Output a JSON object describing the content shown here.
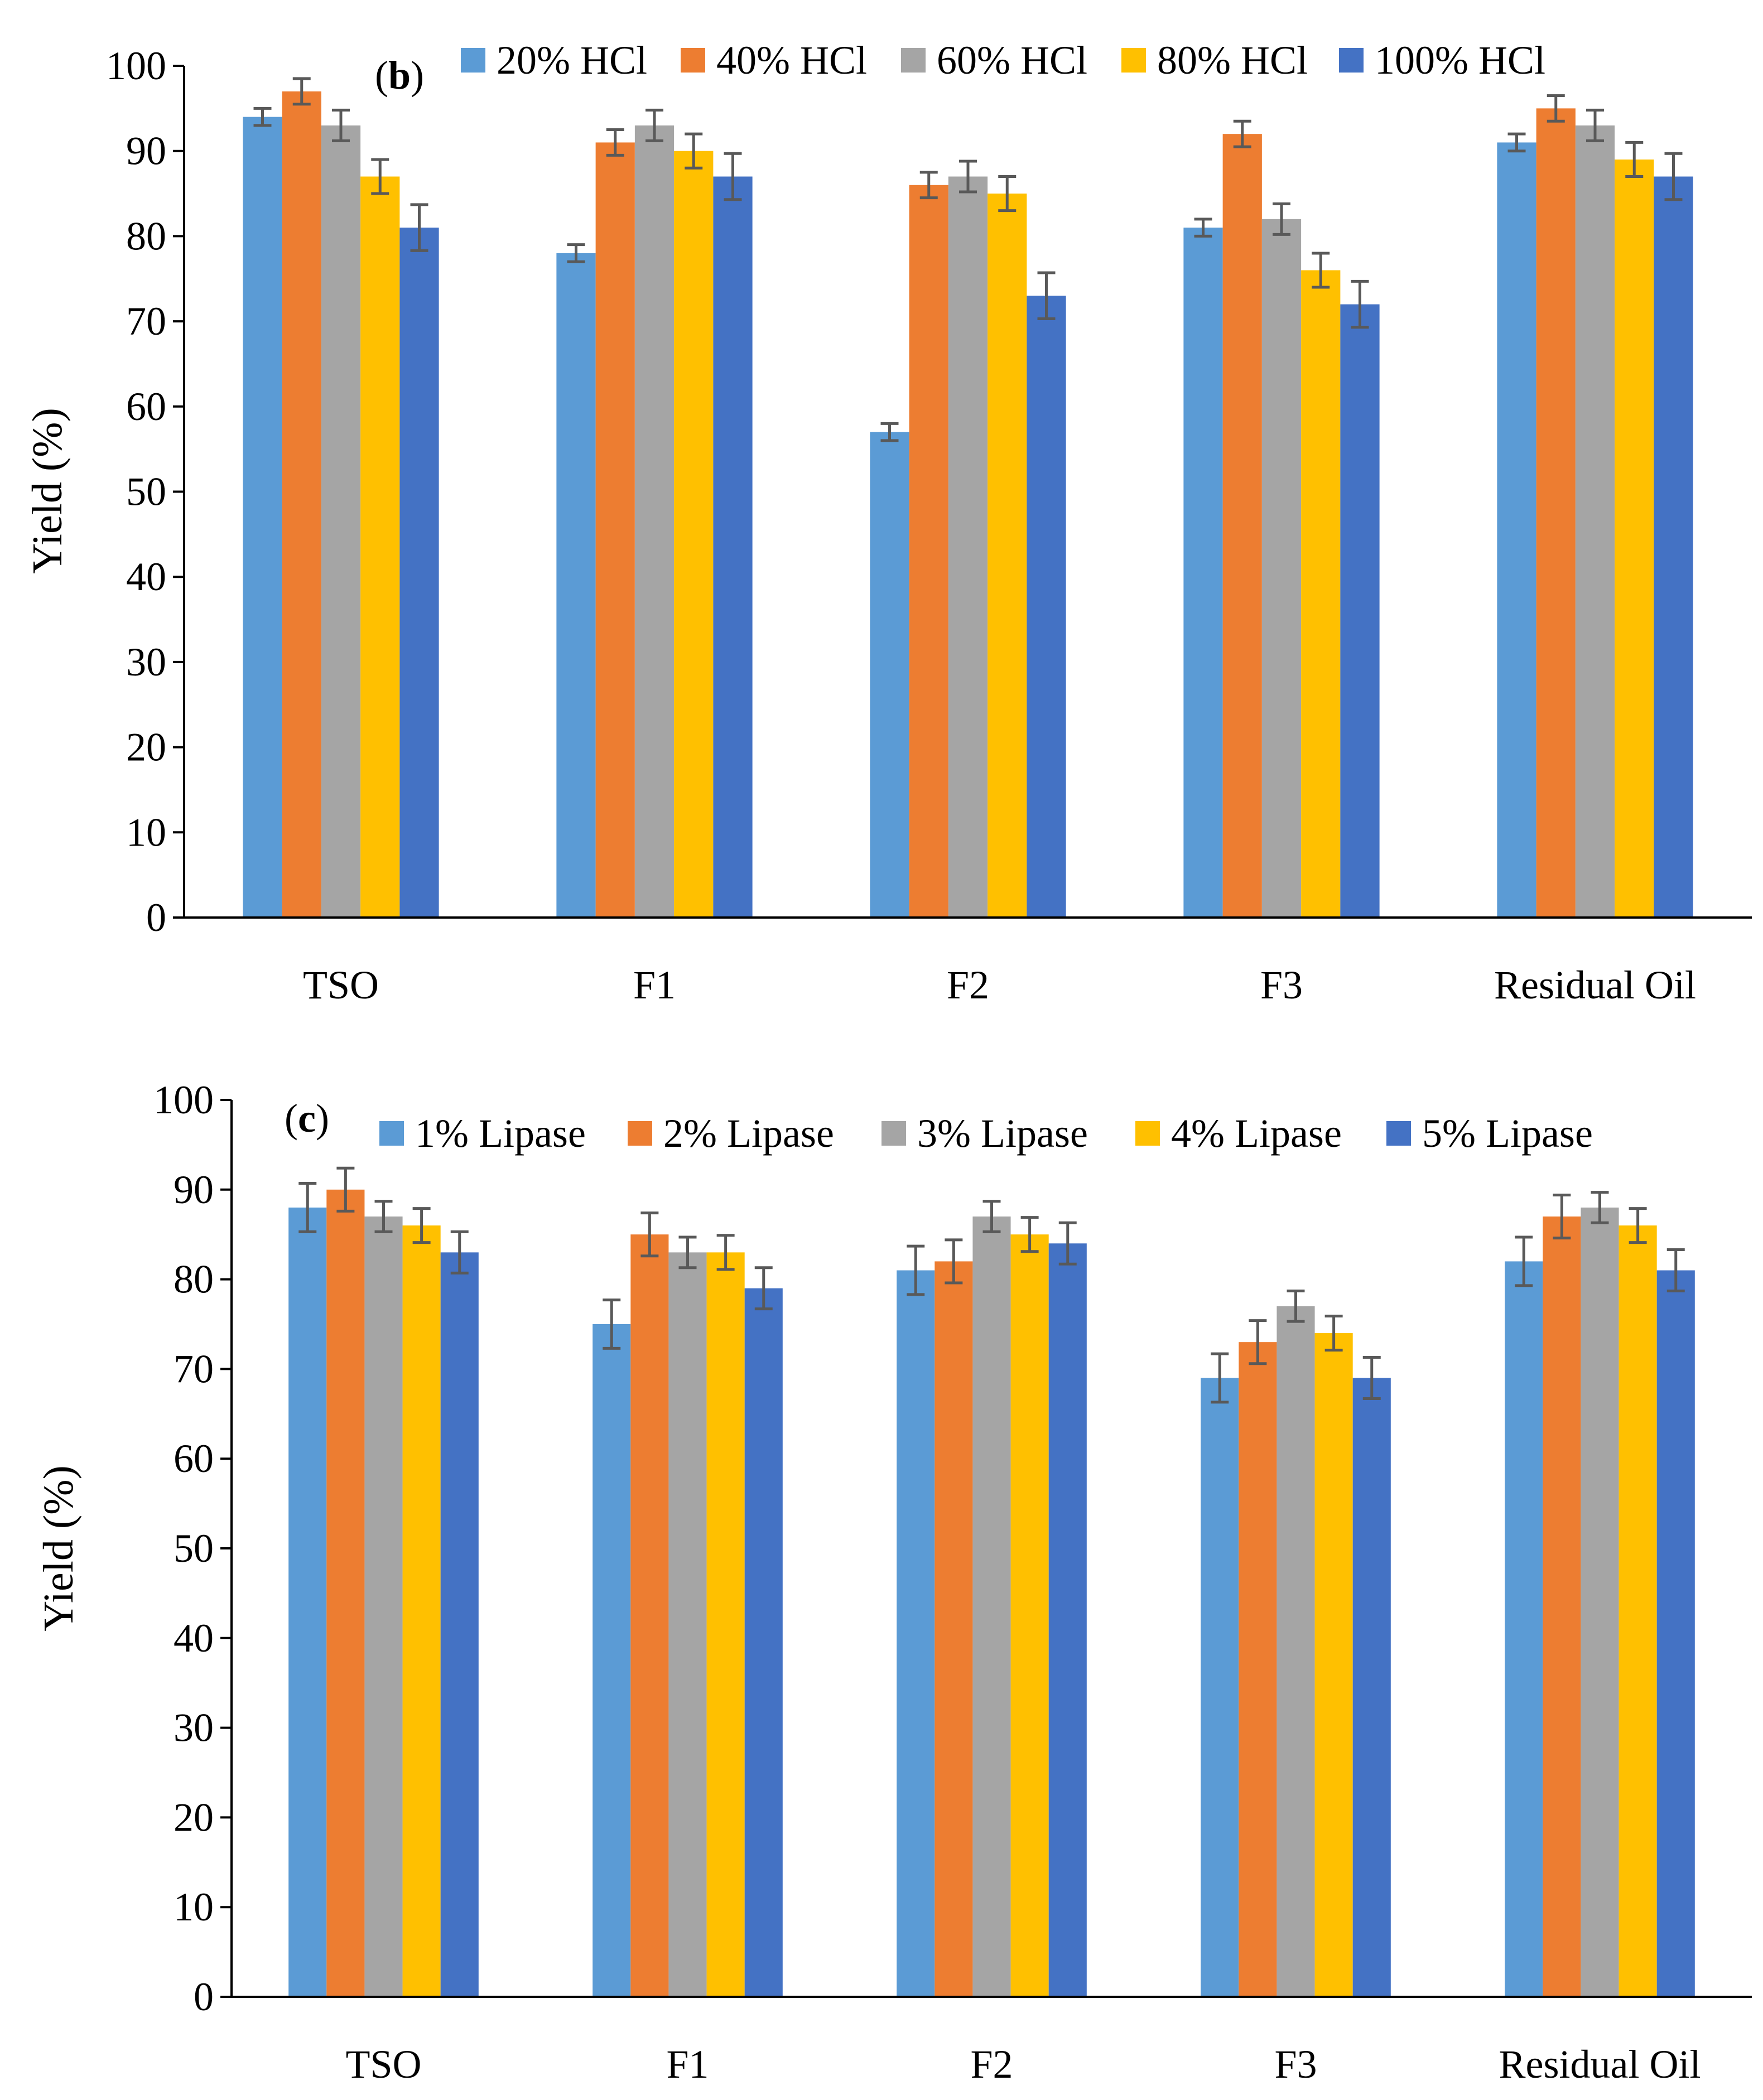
{
  "chart_data": [
    {
      "type": "bar",
      "panel_label": "b",
      "title": "",
      "xlabel": "",
      "ylabel": "Yield (%)",
      "ylim": [
        0,
        100
      ],
      "yticks": [
        0,
        10,
        20,
        30,
        40,
        50,
        60,
        70,
        80,
        90,
        100
      ],
      "grid": false,
      "legend_position": "top",
      "categories": [
        "TSO",
        "F1",
        "F2",
        "F3",
        "Residual Oil"
      ],
      "series": [
        {
          "name": "20% HCl",
          "color": "#5B9BD5",
          "values": [
            94,
            78,
            57,
            81,
            91
          ],
          "errors": [
            1,
            1,
            1,
            1,
            1
          ]
        },
        {
          "name": "40% HCl",
          "color": "#ED7D31",
          "values": [
            97,
            91,
            86,
            92,
            95
          ],
          "errors": [
            1.5,
            1.5,
            1.5,
            1.5,
            1.5
          ]
        },
        {
          "name": "60% HCl",
          "color": "#A5A5A5",
          "values": [
            93,
            93,
            87,
            82,
            93
          ],
          "errors": [
            1.8,
            1.8,
            1.8,
            1.8,
            1.8
          ]
        },
        {
          "name": "80% HCl",
          "color": "#FFC000",
          "values": [
            87,
            90,
            85,
            76,
            89
          ],
          "errors": [
            2,
            2,
            2,
            2,
            2
          ]
        },
        {
          "name": "100% HCl",
          "color": "#4472C4",
          "values": [
            81,
            87,
            73,
            72,
            87
          ],
          "errors": [
            2.7,
            2.7,
            2.7,
            2.7,
            2.7
          ]
        }
      ]
    },
    {
      "type": "bar",
      "panel_label": "c",
      "title": "",
      "xlabel": "",
      "ylabel": "Yield (%)",
      "ylim": [
        0,
        100
      ],
      "yticks": [
        0,
        10,
        20,
        30,
        40,
        50,
        60,
        70,
        80,
        90,
        100
      ],
      "grid": false,
      "legend_position": "top",
      "categories": [
        "TSO",
        "F1",
        "F2",
        "F3",
        "Residual Oil"
      ],
      "series": [
        {
          "name": "1% Lipase",
          "color": "#5B9BD5",
          "values": [
            88,
            75,
            81,
            69,
            82
          ],
          "errors": [
            2.7,
            2.7,
            2.7,
            2.7,
            2.7
          ]
        },
        {
          "name": "2% Lipase",
          "color": "#ED7D31",
          "values": [
            90,
            85,
            82,
            73,
            87
          ],
          "errors": [
            2.4,
            2.4,
            2.4,
            2.4,
            2.4
          ]
        },
        {
          "name": "3% Lipase",
          "color": "#A5A5A5",
          "values": [
            87,
            83,
            87,
            77,
            88
          ],
          "errors": [
            1.7,
            1.7,
            1.7,
            1.7,
            1.7
          ]
        },
        {
          "name": "4% Lipase",
          "color": "#FFC000",
          "values": [
            86,
            83,
            85,
            74,
            86
          ],
          "errors": [
            1.9,
            1.9,
            1.9,
            1.9,
            1.9
          ]
        },
        {
          "name": "5% Lipase",
          "color": "#4472C4",
          "values": [
            83,
            79,
            84,
            69,
            81
          ],
          "errors": [
            2.3,
            2.3,
            2.3,
            2.3,
            2.3
          ]
        }
      ]
    }
  ],
  "style": {
    "axis_color": "#000000",
    "errorbar_color": "#595959"
  }
}
